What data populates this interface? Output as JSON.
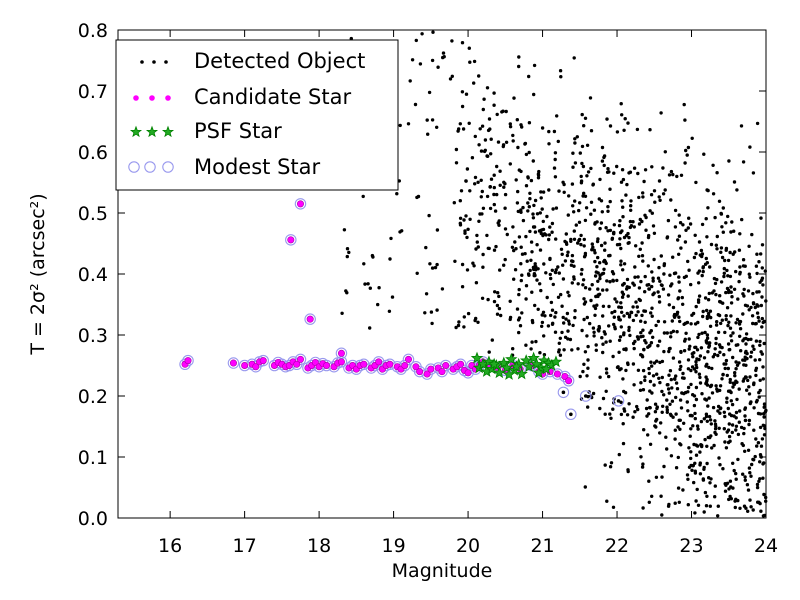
{
  "chart_data": {
    "type": "scatter",
    "xlabel": "Magnitude",
    "ylabel": "T = 2σ² (arcsec²)",
    "xlim": [
      15.3,
      24
    ],
    "ylim": [
      0.0,
      0.8
    ],
    "xticks": [
      "16",
      "17",
      "18",
      "19",
      "20",
      "21",
      "22",
      "23",
      "24"
    ],
    "yticks": [
      "0.0",
      "0.1",
      "0.2",
      "0.3",
      "0.4",
      "0.5",
      "0.6",
      "0.7",
      "0.8"
    ],
    "grid": false,
    "legend_position": "top-left",
    "colors": {
      "detected": "#000000",
      "candidate": "#ff00ff",
      "psf": "#008000",
      "modest": "#9999ee"
    },
    "series": [
      {
        "name": "Detected Object",
        "marker": "dot",
        "note": "dense cloud, magnitude ~18.5–24, size 0.0–0.8"
      },
      {
        "name": "Candidate Star",
        "marker": "magenta-circle"
      },
      {
        "name": "PSF Star",
        "marker": "green-star"
      },
      {
        "name": "Modest Star",
        "marker": "blue-open-circle"
      }
    ],
    "stellar_locus": [
      [
        16.2,
        0.252
      ],
      [
        16.24,
        0.258
      ],
      [
        16.85,
        0.254
      ],
      [
        17.0,
        0.25
      ],
      [
        17.1,
        0.252
      ],
      [
        17.15,
        0.248
      ],
      [
        17.2,
        0.256
      ],
      [
        17.25,
        0.258
      ],
      [
        17.4,
        0.25
      ],
      [
        17.45,
        0.255
      ],
      [
        17.5,
        0.252
      ],
      [
        17.55,
        0.248
      ],
      [
        17.6,
        0.25
      ],
      [
        17.65,
        0.256
      ],
      [
        17.7,
        0.252
      ],
      [
        17.75,
        0.26
      ],
      [
        17.85,
        0.246
      ],
      [
        17.9,
        0.25
      ],
      [
        17.95,
        0.255
      ],
      [
        18.0,
        0.248
      ],
      [
        18.05,
        0.253
      ],
      [
        18.1,
        0.25
      ],
      [
        18.2,
        0.248
      ],
      [
        18.25,
        0.254
      ],
      [
        18.3,
        0.256
      ],
      [
        18.4,
        0.246
      ],
      [
        18.45,
        0.25
      ],
      [
        18.5,
        0.244
      ],
      [
        18.55,
        0.25
      ],
      [
        18.6,
        0.252
      ],
      [
        18.7,
        0.246
      ],
      [
        18.75,
        0.25
      ],
      [
        18.8,
        0.256
      ],
      [
        18.85,
        0.244
      ],
      [
        18.9,
        0.25
      ],
      [
        18.95,
        0.252
      ],
      [
        19.05,
        0.248
      ],
      [
        19.1,
        0.244
      ],
      [
        19.15,
        0.25
      ],
      [
        19.2,
        0.26
      ],
      [
        19.3,
        0.248
      ],
      [
        19.35,
        0.24
      ],
      [
        19.45,
        0.236
      ],
      [
        19.5,
        0.244
      ],
      [
        19.6,
        0.246
      ],
      [
        19.65,
        0.24
      ],
      [
        19.7,
        0.25
      ],
      [
        19.8,
        0.244
      ],
      [
        19.85,
        0.248
      ],
      [
        19.9,
        0.252
      ],
      [
        19.95,
        0.242
      ],
      [
        20.0,
        0.238
      ],
      [
        20.05,
        0.25
      ],
      [
        20.1,
        0.244
      ],
      [
        20.15,
        0.25
      ],
      [
        20.2,
        0.256
      ],
      [
        20.3,
        0.25
      ],
      [
        20.4,
        0.246
      ],
      [
        20.5,
        0.242
      ],
      [
        20.6,
        0.25
      ],
      [
        20.7,
        0.244
      ],
      [
        20.85,
        0.25
      ],
      [
        20.95,
        0.24
      ],
      [
        21.0,
        0.236
      ],
      [
        21.1,
        0.24
      ],
      [
        21.2,
        0.236
      ],
      [
        21.3,
        0.232
      ],
      [
        21.35,
        0.225
      ]
    ],
    "psf_stars": [
      [
        20.12,
        0.262
      ],
      [
        20.15,
        0.246
      ],
      [
        20.2,
        0.252
      ],
      [
        20.25,
        0.24
      ],
      [
        20.28,
        0.256
      ],
      [
        20.32,
        0.244
      ],
      [
        20.38,
        0.25
      ],
      [
        20.42,
        0.238
      ],
      [
        20.48,
        0.254
      ],
      [
        20.52,
        0.246
      ],
      [
        20.58,
        0.26
      ],
      [
        20.62,
        0.242
      ],
      [
        20.68,
        0.252
      ],
      [
        20.72,
        0.236
      ],
      [
        20.78,
        0.258
      ],
      [
        20.82,
        0.248
      ],
      [
        20.88,
        0.262
      ],
      [
        20.92,
        0.252
      ],
      [
        20.98,
        0.246
      ],
      [
        21.02,
        0.258
      ],
      [
        21.08,
        0.254
      ],
      [
        21.12,
        0.25
      ],
      [
        21.18,
        0.256
      ],
      [
        20.55,
        0.235
      ],
      [
        20.65,
        0.248
      ],
      [
        20.35,
        0.252
      ],
      [
        20.95,
        0.238
      ],
      [
        21.05,
        0.244
      ]
    ],
    "outliers_candidate": [
      [
        17.62,
        0.456
      ],
      [
        17.75,
        0.515
      ],
      [
        17.88,
        0.326
      ],
      [
        18.3,
        0.27
      ]
    ],
    "outliers_modest": [
      [
        21.28,
        0.206
      ],
      [
        21.38,
        0.17
      ],
      [
        21.58,
        0.2
      ],
      [
        22.02,
        0.192
      ]
    ]
  }
}
